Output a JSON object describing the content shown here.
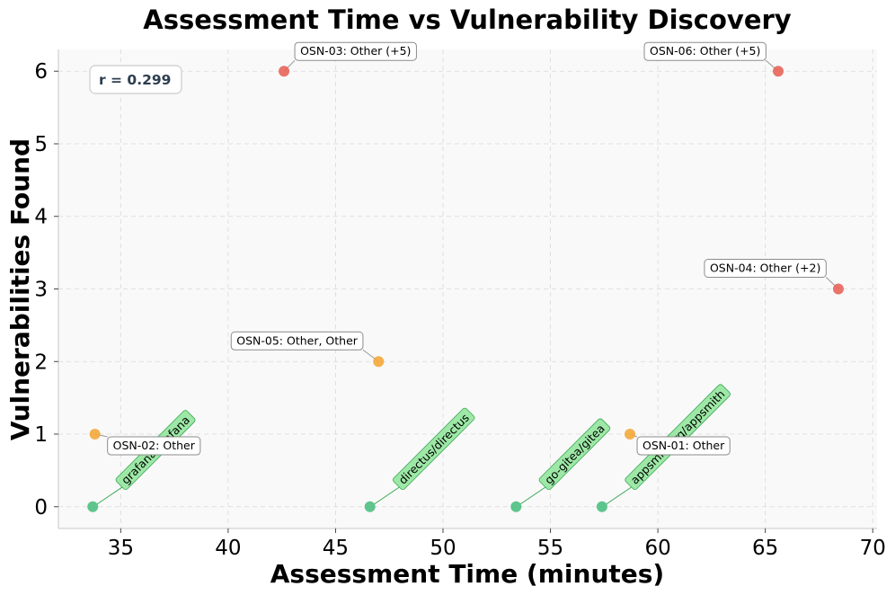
{
  "chart_data": {
    "type": "scatter",
    "title": "Assessment Time vs Vulnerability Discovery",
    "xlabel": "Assessment Time (minutes)",
    "ylabel": "Vulnerabilities Found",
    "xlim": [
      32.1,
      70.2
    ],
    "ylim": [
      -0.3,
      6.3
    ],
    "xticks": [
      35,
      40,
      45,
      50,
      55,
      60,
      65,
      70
    ],
    "yticks": [
      0,
      1,
      2,
      3,
      4,
      5,
      6
    ],
    "grid": true,
    "correlation_label": "r = 0.299",
    "colors": {
      "high": "#e8645a",
      "medium": "#f3a93b",
      "zero": "#4dbf80",
      "green_label_bg": "#9de8a6"
    },
    "points": [
      {
        "x": 33.7,
        "y": 0,
        "color": "zero",
        "label": "grafana/grafana",
        "style": "green"
      },
      {
        "x": 46.6,
        "y": 0,
        "color": "zero",
        "label": "directus/directus",
        "style": "green"
      },
      {
        "x": 53.4,
        "y": 0,
        "color": "zero",
        "label": "go-gitea/gitea",
        "style": "green"
      },
      {
        "x": 57.4,
        "y": 0,
        "color": "zero",
        "label": "appsmithorg/appsmith",
        "style": "green"
      },
      {
        "x": 33.8,
        "y": 1,
        "color": "medium",
        "label": "OSN-02: Other",
        "style": "box"
      },
      {
        "x": 58.7,
        "y": 1,
        "color": "medium",
        "label": "OSN-01: Other",
        "style": "box"
      },
      {
        "x": 47.0,
        "y": 2,
        "color": "medium",
        "label": "OSN-05: Other, Other",
        "style": "box"
      },
      {
        "x": 68.4,
        "y": 3,
        "color": "high",
        "label": "OSN-04: Other (+2)",
        "style": "box"
      },
      {
        "x": 42.6,
        "y": 6,
        "color": "high",
        "label": "OSN-03: Other (+5)",
        "style": "box"
      },
      {
        "x": 65.6,
        "y": 6,
        "color": "high",
        "label": "OSN-06: Other (+5)",
        "style": "box"
      }
    ]
  }
}
